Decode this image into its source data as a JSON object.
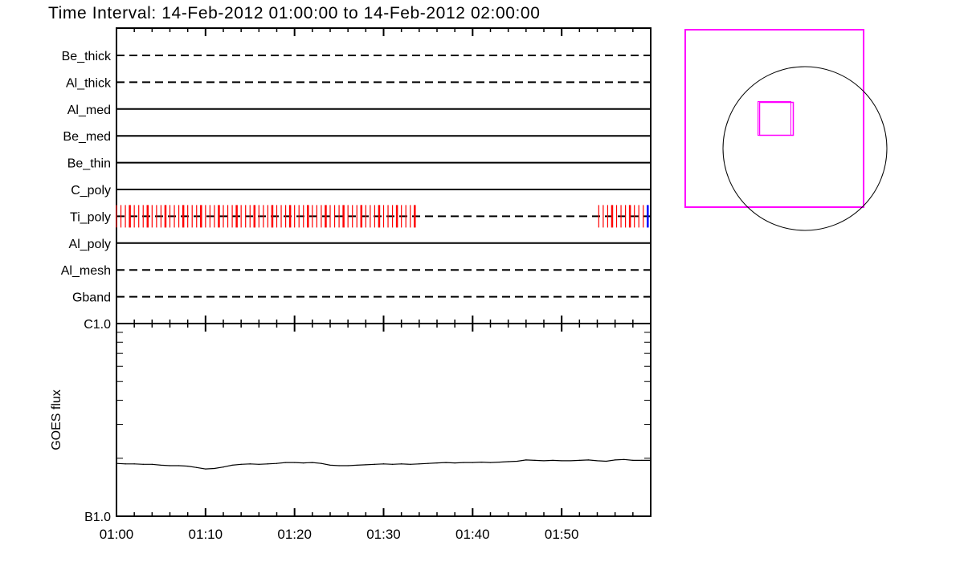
{
  "title": "Time Interval: 14-Feb-2012 01:00:00 to 14-Feb-2012 02:00:00",
  "chart_data": [
    {
      "type": "timeline",
      "rows": [
        {
          "label": "Be_thick",
          "style": "dashed"
        },
        {
          "label": "Al_thick",
          "style": "dashed"
        },
        {
          "label": "Al_med",
          "style": "solid"
        },
        {
          "label": "Be_med",
          "style": "solid"
        },
        {
          "label": "Be_thin",
          "style": "solid"
        },
        {
          "label": "C_poly",
          "style": "solid"
        },
        {
          "label": "Ti_poly",
          "style": "dashed"
        },
        {
          "label": "Al_poly",
          "style": "solid"
        },
        {
          "label": "Al_mesh",
          "style": "dashed"
        },
        {
          "label": "Gband",
          "style": "dashed"
        }
      ],
      "exposures": {
        "row": "Ti_poly",
        "color": "#ff0000",
        "last_color": "#0000ff",
        "cadence_s": 30,
        "segments": [
          {
            "start": "01:00:00",
            "end": "01:33:40"
          },
          {
            "start": "01:54:10",
            "end": "01:59:50"
          }
        ]
      }
    },
    {
      "type": "line",
      "ylabel": "GOES flux",
      "yscale": "log",
      "ylim": [
        1e-07,
        1e-06
      ],
      "ytick_labels": [
        "B1.0",
        "C1.0"
      ],
      "xlim": [
        "01:00",
        "02:00"
      ],
      "xtick_labels": [
        "01:00",
        "01:10",
        "01:20",
        "01:30",
        "01:40",
        "01:50"
      ],
      "x_minutes": "0..60 step 1",
      "values": [
        1.88e-07,
        1.87e-07,
        1.87e-07,
        1.86e-07,
        1.86e-07,
        1.84e-07,
        1.83e-07,
        1.83e-07,
        1.82e-07,
        1.79e-07,
        1.76e-07,
        1.77e-07,
        1.8e-07,
        1.84e-07,
        1.86e-07,
        1.87e-07,
        1.86e-07,
        1.87e-07,
        1.88e-07,
        1.9e-07,
        1.9e-07,
        1.89e-07,
        1.9e-07,
        1.88e-07,
        1.84e-07,
        1.83e-07,
        1.83e-07,
        1.84e-07,
        1.85e-07,
        1.86e-07,
        1.87e-07,
        1.86e-07,
        1.87e-07,
        1.86e-07,
        1.87e-07,
        1.88e-07,
        1.89e-07,
        1.9e-07,
        1.89e-07,
        1.9e-07,
        1.9e-07,
        1.91e-07,
        1.9e-07,
        1.91e-07,
        1.92e-07,
        1.93e-07,
        1.96e-07,
        1.95e-07,
        1.94e-07,
        1.95e-07,
        1.94e-07,
        1.94e-07,
        1.95e-07,
        1.96e-07,
        1.94e-07,
        1.93e-07,
        1.96e-07,
        1.97e-07,
        1.95e-07,
        1.95e-07,
        1.95e-07
      ]
    }
  ],
  "fov_panel": {
    "sun_color": "#000000",
    "fov_color": "#ff00ff"
  }
}
